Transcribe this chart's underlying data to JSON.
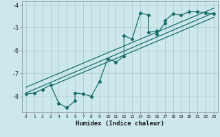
{
  "xlabel": "Humidex (Indice chaleur)",
  "bg_color": "#cce8ec",
  "grid_color": "#aacccc",
  "line_color": "#1a6e6a",
  "xlim": [
    -0.5,
    23.5
  ],
  "ylim": [
    -8.7,
    -3.85
  ],
  "yticks": [
    -8,
    -7,
    -6,
    -5,
    -4
  ],
  "xticks": [
    0,
    1,
    2,
    3,
    4,
    5,
    6,
    7,
    8,
    9,
    10,
    11,
    12,
    13,
    14,
    15,
    16,
    17,
    18,
    19,
    20,
    21,
    22,
    23
  ],
  "data_x": [
    0,
    1,
    2,
    3,
    4,
    5,
    6,
    6,
    7,
    8,
    9,
    10,
    11,
    12,
    12,
    13,
    14,
    15,
    15,
    16,
    16,
    17,
    17,
    18,
    19,
    20,
    21,
    22,
    23
  ],
  "data_y": [
    -7.9,
    -7.85,
    -7.7,
    -7.5,
    -8.3,
    -8.5,
    -8.2,
    -7.85,
    -7.9,
    -8.0,
    -7.35,
    -6.35,
    -6.5,
    -6.25,
    -5.35,
    -5.5,
    -4.35,
    -4.45,
    -5.2,
    -5.15,
    -5.3,
    -4.8,
    -4.7,
    -4.4,
    -4.45,
    -4.3,
    -4.3,
    -4.35,
    -4.4
  ],
  "line1_x": [
    0,
    23
  ],
  "line1_y": [
    -7.85,
    -4.35
  ],
  "line2_x": [
    0,
    23
  ],
  "line2_y": [
    -7.6,
    -4.15
  ],
  "line3_x": [
    3,
    23
  ],
  "line3_y": [
    -7.55,
    -4.55
  ]
}
